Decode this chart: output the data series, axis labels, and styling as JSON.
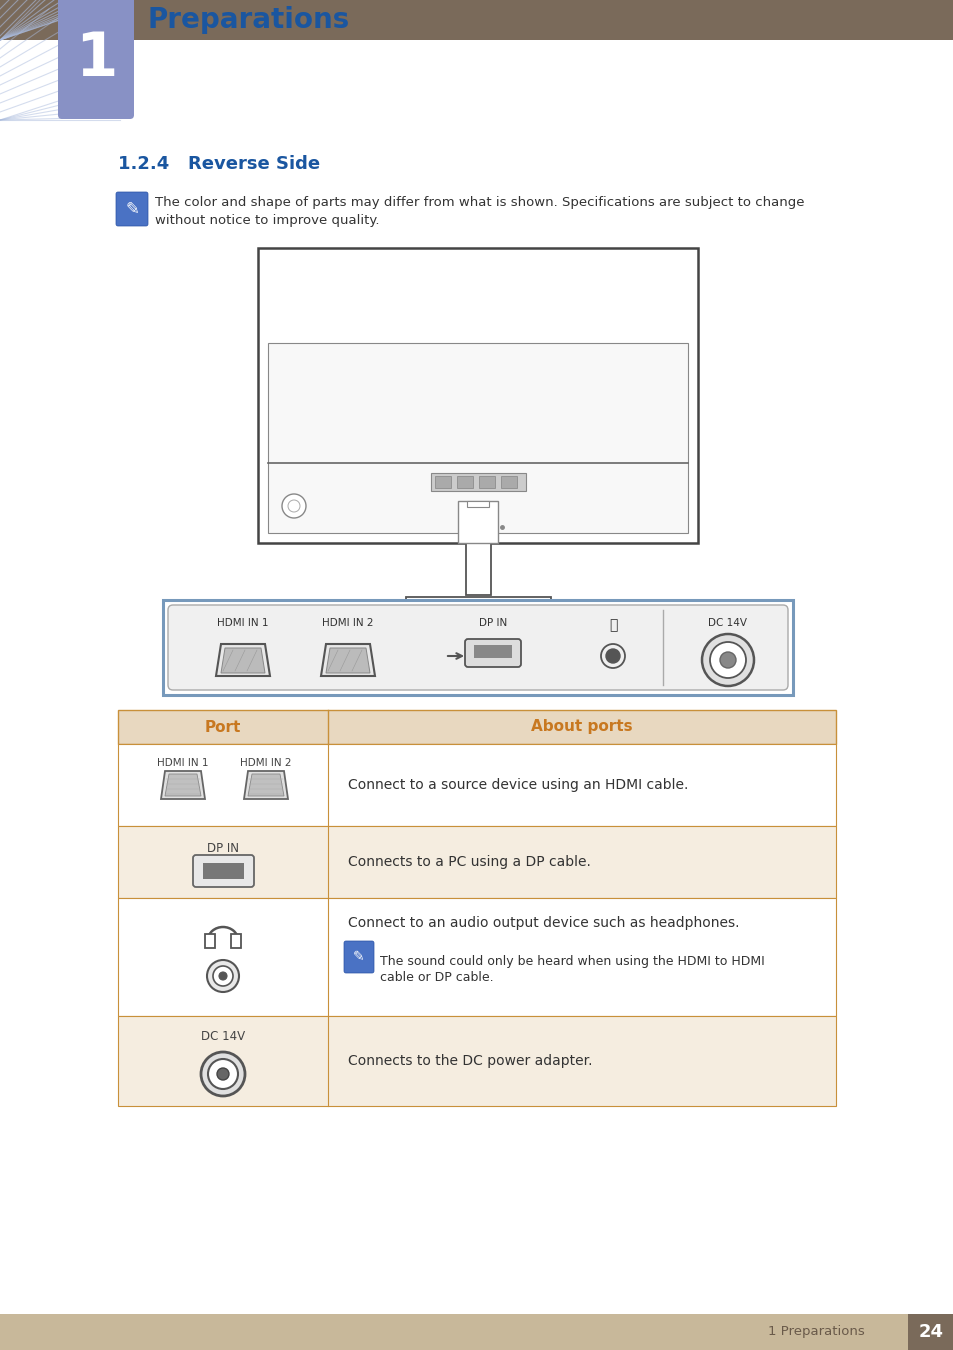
{
  "page_bg": "#ffffff",
  "header_bar_color": "#7a6a5a",
  "chapter_box_color_top": "#a0aacc",
  "chapter_box_color_bot": "#7a85bb",
  "chapter_number": "1",
  "chapter_title": "Preparations",
  "chapter_title_color": "#1a56a0",
  "section_title": "1.2.4   Reverse Side",
  "section_title_color": "#1a56a0",
  "note_text_line1": "The color and shape of parts may differ from what is shown. Specifications are subject to change",
  "note_text_line2": "without notice to improve quality.",
  "table_header_bg": "#e8d8c0",
  "table_header_text_color": "#c87820",
  "table_row_bg_alt": "#f5ede0",
  "table_border_color": "#c8903a",
  "table_col1_header": "Port",
  "table_col2_header": "About ports",
  "row1_port_labels": [
    "HDMI IN 1",
    "HDMI IN 2"
  ],
  "row1_desc": "Connect to a source device using an HDMI cable.",
  "row2_port_label": "DP IN",
  "row2_desc": "Connects to a PC using a DP cable.",
  "row3_desc_line1": "Connect to an audio output device such as headphones.",
  "row3_note_line1": "The sound could only be heard when using the HDMI to HDMI",
  "row3_note_line2": "cable or DP cable.",
  "row4_port_label": "DC 14V",
  "row4_desc": "Connects to the DC power adapter.",
  "footer_bg": "#c8b89a",
  "footer_text": "1 Preparations",
  "footer_page": "24",
  "footer_page_bg": "#7a6a5a"
}
